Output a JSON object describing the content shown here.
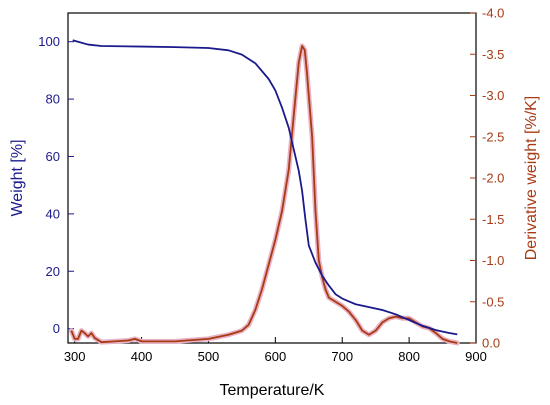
{
  "chart_data": {
    "type": "line",
    "xlabel": "Temperature/K",
    "ylabel_left": "Weight [%]",
    "ylabel_right": "Derivative weight [%/K]",
    "xlim": [
      290,
      900
    ],
    "ylim_left": [
      -5,
      110
    ],
    "ylim_right": [
      0.0,
      -4.0
    ],
    "x_ticks": [
      300,
      400,
      500,
      600,
      700,
      800,
      900
    ],
    "y_left_ticks": [
      0,
      20,
      40,
      60,
      80,
      100
    ],
    "y_right_ticks": [
      "0.0",
      "-0.5",
      "-1.0",
      "-1.5",
      "-2.0",
      "-2.5",
      "-3.0",
      "-3.5",
      "-4.0"
    ],
    "colors": {
      "weight": "#1a1a8c",
      "derivative": "#a83a14",
      "highlight": "#e8b3c4"
    },
    "series": [
      {
        "axis": "left",
        "points": [
          [
            297,
            100.5
          ],
          [
            305,
            100.0
          ],
          [
            320,
            99.0
          ],
          [
            340,
            98.5
          ],
          [
            400,
            98.3
          ],
          [
            450,
            98.1
          ],
          [
            500,
            97.8
          ],
          [
            530,
            97.0
          ],
          [
            550,
            95.5
          ],
          [
            570,
            92.5
          ],
          [
            590,
            87.0
          ],
          [
            600,
            83.0
          ],
          [
            610,
            77.0
          ],
          [
            620,
            70.0
          ],
          [
            628,
            62.0
          ],
          [
            635,
            55.0
          ],
          [
            640,
            48.0
          ],
          [
            645,
            38.0
          ],
          [
            650,
            29.0
          ],
          [
            660,
            23.0
          ],
          [
            670,
            18.5
          ],
          [
            680,
            15.0
          ],
          [
            690,
            12.0
          ],
          [
            700,
            10.5
          ],
          [
            710,
            9.5
          ],
          [
            720,
            8.5
          ],
          [
            740,
            7.5
          ],
          [
            760,
            6.5
          ],
          [
            780,
            5.0
          ],
          [
            800,
            3.0
          ],
          [
            820,
            1.0
          ],
          [
            840,
            -0.5
          ],
          [
            860,
            -1.5
          ],
          [
            872,
            -2.0
          ]
        ]
      },
      {
        "axis": "right",
        "points": [
          [
            295,
            -0.15
          ],
          [
            300,
            -0.05
          ],
          [
            305,
            -0.05
          ],
          [
            310,
            -0.15
          ],
          [
            315,
            -0.12
          ],
          [
            320,
            -0.08
          ],
          [
            325,
            -0.12
          ],
          [
            330,
            -0.06
          ],
          [
            340,
            -0.01
          ],
          [
            360,
            -0.02
          ],
          [
            380,
            -0.03
          ],
          [
            390,
            -0.05
          ],
          [
            400,
            -0.02
          ],
          [
            450,
            -0.02
          ],
          [
            500,
            -0.05
          ],
          [
            530,
            -0.1
          ],
          [
            550,
            -0.15
          ],
          [
            560,
            -0.22
          ],
          [
            570,
            -0.4
          ],
          [
            580,
            -0.65
          ],
          [
            590,
            -0.95
          ],
          [
            600,
            -1.25
          ],
          [
            610,
            -1.6
          ],
          [
            620,
            -2.1
          ],
          [
            628,
            -2.8
          ],
          [
            635,
            -3.4
          ],
          [
            640,
            -3.6
          ],
          [
            644,
            -3.55
          ],
          [
            647,
            -3.3
          ],
          [
            650,
            -3.0
          ],
          [
            655,
            -2.5
          ],
          [
            660,
            -1.6
          ],
          [
            665,
            -1.0
          ],
          [
            670,
            -0.8
          ],
          [
            675,
            -0.65
          ],
          [
            680,
            -0.55
          ],
          [
            690,
            -0.5
          ],
          [
            700,
            -0.45
          ],
          [
            710,
            -0.38
          ],
          [
            720,
            -0.28
          ],
          [
            730,
            -0.15
          ],
          [
            740,
            -0.1
          ],
          [
            750,
            -0.15
          ],
          [
            760,
            -0.25
          ],
          [
            770,
            -0.3
          ],
          [
            780,
            -0.32
          ],
          [
            790,
            -0.3
          ],
          [
            800,
            -0.3
          ],
          [
            810,
            -0.25
          ],
          [
            820,
            -0.2
          ],
          [
            830,
            -0.18
          ],
          [
            840,
            -0.12
          ],
          [
            850,
            -0.05
          ],
          [
            860,
            -0.02
          ],
          [
            872,
            0.0
          ]
        ]
      }
    ]
  }
}
